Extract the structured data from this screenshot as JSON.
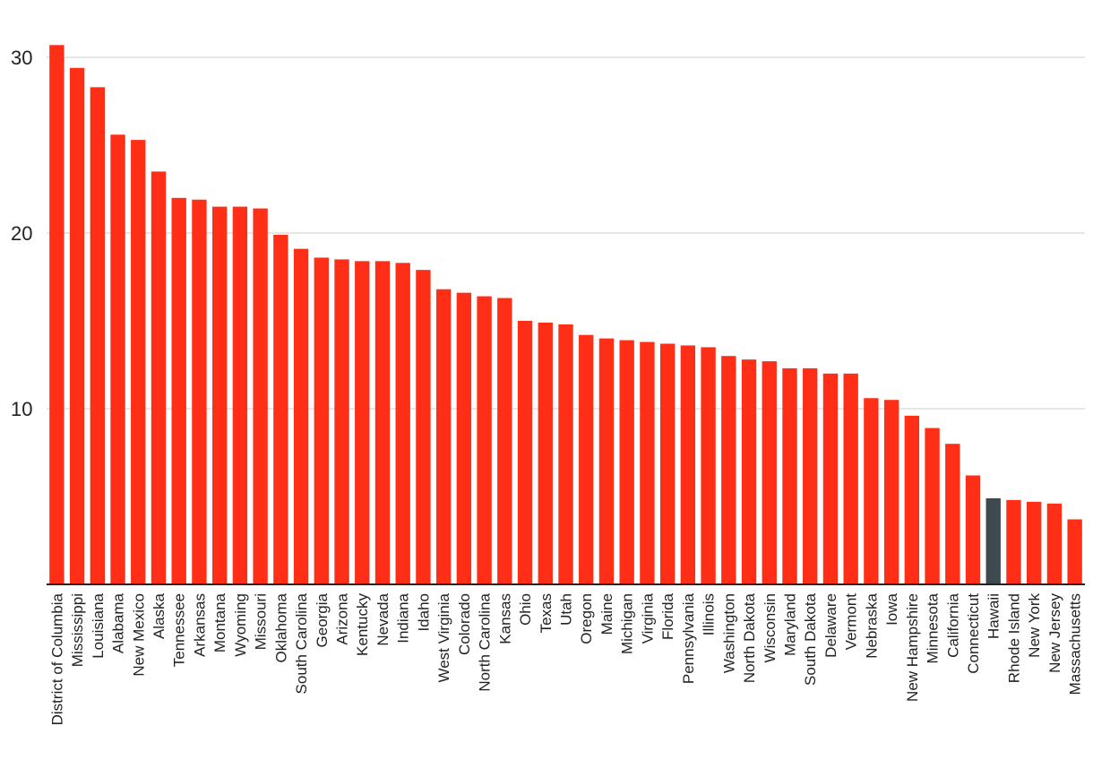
{
  "chart_data": {
    "type": "bar",
    "title": "",
    "xlabel": "",
    "ylabel": "",
    "ylim": [
      0,
      31
    ],
    "yticks": [
      10,
      20,
      30
    ],
    "grid": true,
    "categories": [
      "District of Columbia",
      "Mississippi",
      "Louisiana",
      "Alabama",
      "New Mexico",
      "Alaska",
      "Tennessee",
      "Arkansas",
      "Montana",
      "Wyoming",
      "Missouri",
      "Oklahoma",
      "South Carolina",
      "Georgia",
      "Arizona",
      "Kentucky",
      "Nevada",
      "Indiana",
      "Idaho",
      "West Virginia",
      "Colorado",
      "North Carolina",
      "Kansas",
      "Ohio",
      "Texas",
      "Utah",
      "Oregon",
      "Maine",
      "Michigan",
      "Virginia",
      "Florida",
      "Pennsylvania",
      "Illinois",
      "Washington",
      "North Dakota",
      "Wisconsin",
      "Maryland",
      "South Dakota",
      "Delaware",
      "Vermont",
      "Nebraska",
      "Iowa",
      "New Hampshire",
      "Minnesota",
      "California",
      "Connecticut",
      "Hawaii",
      "Rhode Island",
      "New York",
      "New Jersey",
      "Massachusetts"
    ],
    "values": [
      30.7,
      29.4,
      28.3,
      25.6,
      25.3,
      23.5,
      22.0,
      21.9,
      21.5,
      21.5,
      21.4,
      19.9,
      19.1,
      18.6,
      18.5,
      18.4,
      18.4,
      18.3,
      17.9,
      16.8,
      16.6,
      16.4,
      16.3,
      15.0,
      14.9,
      14.8,
      14.2,
      14.0,
      13.9,
      13.8,
      13.7,
      13.6,
      13.5,
      13.0,
      12.8,
      12.7,
      12.3,
      12.3,
      12.0,
      12.0,
      10.6,
      10.5,
      9.6,
      8.9,
      8.0,
      6.2,
      4.9,
      4.8,
      4.7,
      4.6,
      3.7
    ],
    "highlight": "Hawaii",
    "colors": {
      "bar": "#ff2e17",
      "highlight": "#3e4a4f",
      "grid": "#dddddd",
      "axis": "#222222"
    }
  }
}
